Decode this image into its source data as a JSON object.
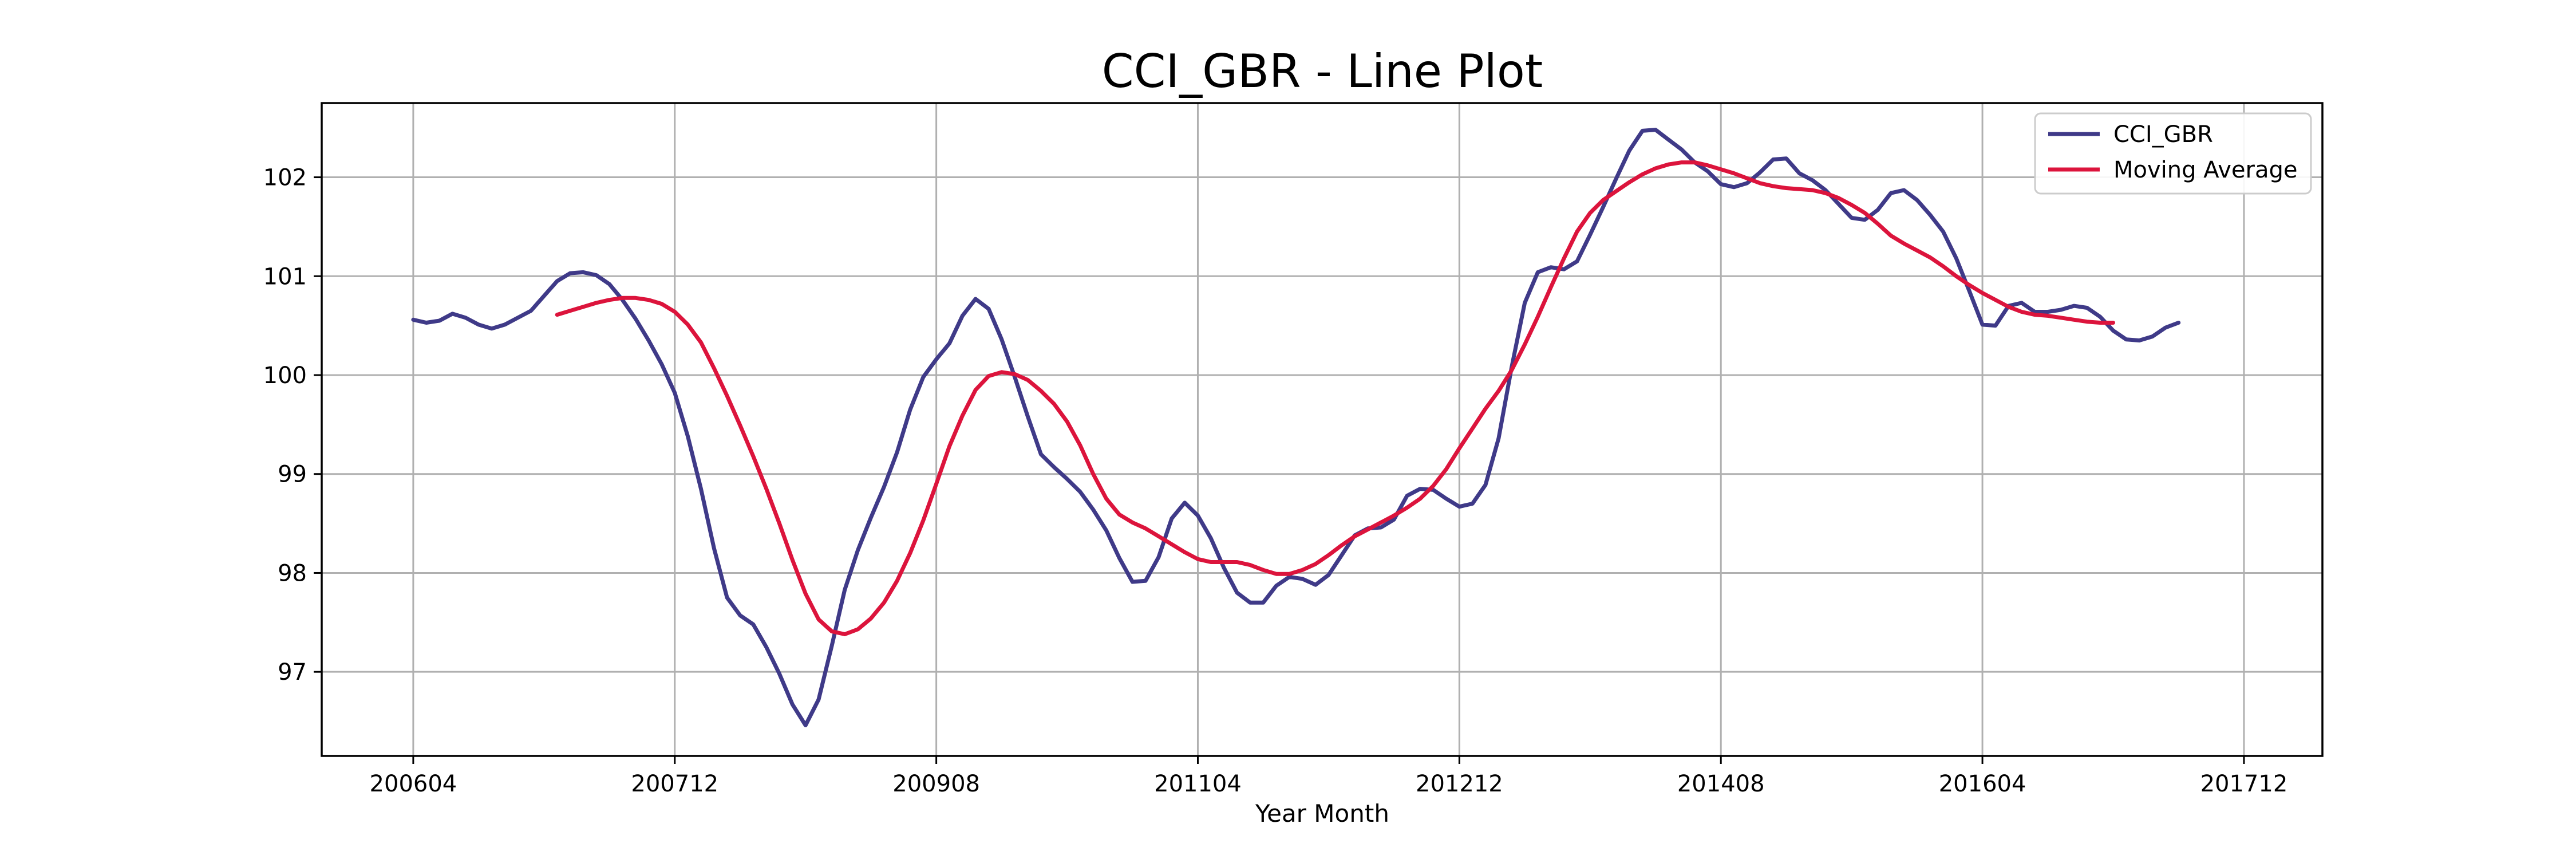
{
  "chart_data": {
    "type": "line",
    "title": "CCI_GBR - Line Plot",
    "xlabel": "Year Month",
    "ylabel": "",
    "x_tick_labels": [
      "200604",
      "200712",
      "200908",
      "201104",
      "201212",
      "201408",
      "201604",
      "201712"
    ],
    "y_tick_labels": [
      "97",
      "98",
      "99",
      "100",
      "101",
      "102"
    ],
    "y_ticks": [
      97,
      98,
      99,
      100,
      101,
      102
    ],
    "xlim_months_from_200604": [
      -7,
      146
    ],
    "ylim": [
      96.15,
      102.75
    ],
    "grid": true,
    "legend_position": "top-right",
    "series": [
      {
        "name": "CCI_GBR",
        "color": "#3f3a88",
        "start_month": "2006-04",
        "values": [
          100.56,
          100.53,
          100.55,
          100.62,
          100.58,
          100.51,
          100.47,
          100.51,
          100.58,
          100.65,
          100.8,
          100.95,
          101.03,
          101.04,
          101.01,
          100.92,
          100.76,
          100.57,
          100.35,
          100.11,
          99.82,
          99.38,
          98.85,
          98.25,
          97.75,
          97.57,
          97.48,
          97.25,
          96.98,
          96.67,
          96.46,
          96.72,
          97.26,
          97.83,
          98.23,
          98.56,
          98.87,
          99.22,
          99.65,
          99.98,
          100.16,
          100.32,
          100.6,
          100.77,
          100.67,
          100.36,
          99.98,
          99.58,
          99.2,
          99.07,
          98.95,
          98.82,
          98.64,
          98.43,
          98.15,
          97.91,
          97.92,
          98.16,
          98.55,
          98.71,
          98.58,
          98.35,
          98.05,
          97.8,
          97.7,
          97.7,
          97.87,
          97.96,
          97.94,
          97.88,
          97.98,
          98.18,
          98.38,
          98.45,
          98.46,
          98.54,
          98.78,
          98.85,
          98.84,
          98.75,
          98.67,
          98.7,
          98.89,
          99.36,
          100.08,
          100.73,
          101.04,
          101.09,
          101.07,
          101.15,
          101.42,
          101.7,
          101.99,
          102.27,
          102.47,
          102.48,
          102.38,
          102.28,
          102.15,
          102.06,
          101.93,
          101.9,
          101.94,
          102.05,
          102.18,
          102.19,
          102.04,
          101.97,
          101.87,
          101.73,
          101.59,
          101.57,
          101.67,
          101.84,
          101.87,
          101.77,
          101.62,
          101.45,
          101.18,
          100.85,
          100.51,
          100.5,
          100.7,
          100.73,
          100.64,
          100.64,
          100.66,
          100.7,
          100.68,
          100.59,
          100.45,
          100.36,
          100.35,
          100.39,
          100.48,
          100.53
        ]
      },
      {
        "name": "Moving Average",
        "color": "#dc143c",
        "start_month": "2007-03",
        "values": [
          100.61,
          100.65,
          100.69,
          100.73,
          100.76,
          100.78,
          100.78,
          100.76,
          100.72,
          100.64,
          100.51,
          100.33,
          100.07,
          99.79,
          99.49,
          99.18,
          98.85,
          98.5,
          98.13,
          97.79,
          97.53,
          97.41,
          97.38,
          97.43,
          97.54,
          97.7,
          97.92,
          98.2,
          98.53,
          98.9,
          99.28,
          99.59,
          99.85,
          99.99,
          100.03,
          100.01,
          99.95,
          99.84,
          99.71,
          99.53,
          99.29,
          99.0,
          98.75,
          98.59,
          98.51,
          98.45,
          98.37,
          98.29,
          98.21,
          98.14,
          98.11,
          98.11,
          98.11,
          98.08,
          98.03,
          97.99,
          97.99,
          98.03,
          98.09,
          98.18,
          98.28,
          98.37,
          98.44,
          98.51,
          98.58,
          98.66,
          98.75,
          98.88,
          99.05,
          99.26,
          99.46,
          99.66,
          99.84,
          100.05,
          100.31,
          100.59,
          100.89,
          101.18,
          101.45,
          101.64,
          101.77,
          101.86,
          101.95,
          102.03,
          102.09,
          102.13,
          102.15,
          102.15,
          102.12,
          102.08,
          102.04,
          101.99,
          101.94,
          101.91,
          101.89,
          101.88,
          101.87,
          101.84,
          101.79,
          101.72,
          101.64,
          101.53,
          101.41,
          101.33,
          101.26,
          101.19,
          101.1,
          101.0,
          100.91,
          100.83,
          100.76,
          100.69,
          100.64,
          100.61,
          100.6,
          100.58,
          100.56,
          100.54,
          100.53,
          100.53
        ]
      }
    ]
  }
}
